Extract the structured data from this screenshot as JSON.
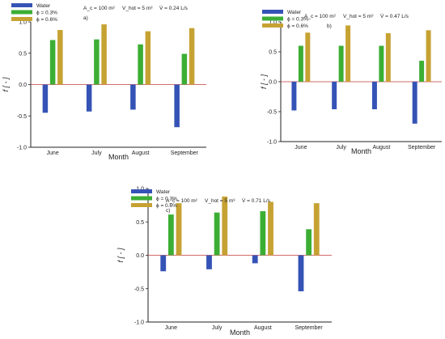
{
  "figure_note": "",
  "colors": {
    "water": "#3553b6",
    "phi03": "#3cae34",
    "phi06": "#c6a233",
    "axis": "#222222"
  },
  "chart_data": [
    {
      "type": "bar",
      "panel_label": "a)",
      "params": [
        "A_c = 100 m²",
        "V_hot = 5 m³",
        "V̇ = 0.24 L/s"
      ],
      "categories": [
        "June",
        "July",
        "August",
        "September"
      ],
      "series": [
        {
          "name": "Water",
          "values": [
            -0.45,
            -0.43,
            -0.4,
            -0.68
          ]
        },
        {
          "name": "ϕ = 0.3%",
          "values": [
            0.71,
            0.72,
            0.64,
            0.49
          ]
        },
        {
          "name": "ϕ = 0.6%",
          "values": [
            0.87,
            0.96,
            0.85,
            0.9
          ]
        }
      ],
      "xlabel": "Month",
      "ylabel": "f [ - ]",
      "ylim": [
        -1.0,
        1.0
      ],
      "yticks": [
        "1.0",
        "0.5",
        "0.0",
        "-0.5",
        "-1.0"
      ]
    },
    {
      "type": "bar",
      "panel_label": "b)",
      "params": [
        "A_c = 100 m²",
        "V_hot = 5 m³",
        "V̇ = 0.47 L/s"
      ],
      "categories": [
        "June",
        "July",
        "August",
        "September"
      ],
      "series": [
        {
          "name": "Water",
          "values": [
            -0.48,
            -0.46,
            -0.46,
            -0.7
          ]
        },
        {
          "name": "ϕ = 0.3%",
          "values": [
            0.6,
            0.6,
            0.6,
            0.35
          ]
        },
        {
          "name": "ϕ = 0.6%",
          "values": [
            0.82,
            0.94,
            0.81,
            0.86
          ]
        }
      ],
      "xlabel": "Month",
      "ylabel": "f [ - ]",
      "ylim": [
        -1.0,
        1.0
      ],
      "yticks": [
        "1.0",
        "0.5",
        "0.0",
        "-0.5",
        "-1.0"
      ]
    },
    {
      "type": "bar",
      "panel_label": "c)",
      "params": [
        "A_c = 100 m²",
        "V_hot = 5 m³",
        "V̇ = 0.71 L/s"
      ],
      "categories": [
        "June",
        "July",
        "August",
        "September"
      ],
      "series": [
        {
          "name": "Water",
          "values": [
            -0.24,
            -0.21,
            -0.12,
            -0.54
          ]
        },
        {
          "name": "ϕ = 0.3%",
          "values": [
            0.61,
            0.64,
            0.66,
            0.39
          ]
        },
        {
          "name": "ϕ = 0.6%",
          "values": [
            0.78,
            0.88,
            0.8,
            0.78
          ]
        }
      ],
      "xlabel": "Month",
      "ylabel": "f [ - ]",
      "ylim": [
        -1.0,
        1.0
      ],
      "yticks": [
        "1.0",
        "0.5",
        "0.0",
        "-0.5",
        "-1.0"
      ]
    }
  ]
}
